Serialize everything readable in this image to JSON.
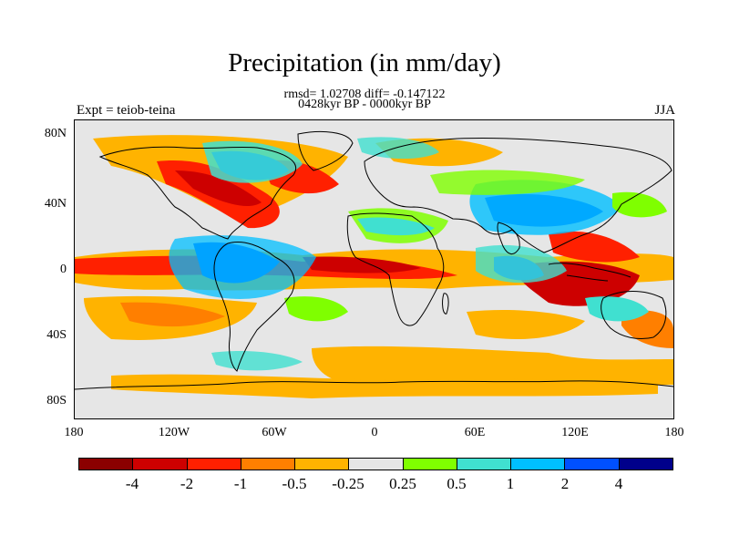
{
  "title": "Precipitation (in mm/day)",
  "stats_line": "rmsd= 1.02708 diff= -0.147122",
  "period_line": "0428kyr BP - 0000kyr BP",
  "experiment_label": "Expt = teiob-teina",
  "season_label": "JJA",
  "lat_ticks": [
    "80N",
    "40N",
    "0",
    "40S",
    "80S"
  ],
  "lon_ticks": [
    "180",
    "120W",
    "60W",
    "0",
    "60E",
    "120E",
    "180"
  ],
  "colorbar": {
    "colors": [
      "#8b0000",
      "#cd0000",
      "#ff2000",
      "#ff7f00",
      "#ffb300",
      "#e6e6e6",
      "#7fff00",
      "#40e0d0",
      "#00bfff",
      "#0050ff",
      "#00008b"
    ],
    "labels": [
      "-4",
      "-2",
      "-1",
      "-0.5",
      "-0.25",
      "0.25",
      "0.5",
      "1",
      "2",
      "4"
    ]
  },
  "map": {
    "projection": "cylindrical equidistant",
    "field": "precipitation difference",
    "units": "mm/day",
    "lon_range": [
      -180,
      180
    ],
    "lat_range": [
      -90,
      90
    ]
  }
}
